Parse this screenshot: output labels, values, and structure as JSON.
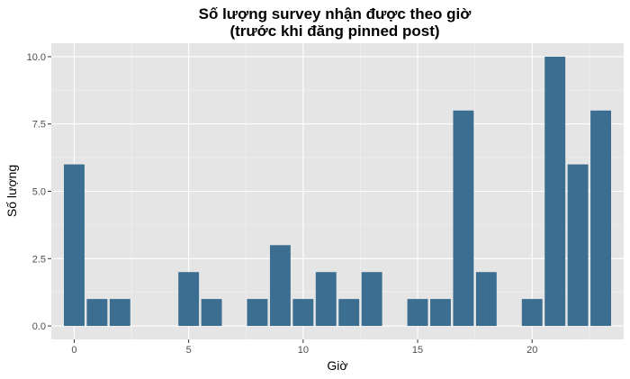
{
  "chart_data": {
    "type": "bar",
    "title": "Số lượng survey nhận được theo giờ",
    "subtitle": "(trước khi đăng pinned post)",
    "xlabel": "Giờ",
    "ylabel": "Số lượng",
    "x": [
      0,
      1,
      2,
      5,
      6,
      8,
      9,
      10,
      11,
      12,
      13,
      15,
      16,
      17,
      18,
      20,
      21,
      22,
      23
    ],
    "values": [
      6,
      1,
      1,
      2,
      1,
      1,
      3,
      1,
      2,
      1,
      2,
      1,
      1,
      8,
      2,
      1,
      10,
      6,
      8
    ],
    "xlim": [
      -1,
      24
    ],
    "ylim": [
      -0.5,
      10.5
    ],
    "x_ticks": [
      0,
      5,
      10,
      15,
      20
    ],
    "x_tick_labels": [
      "0",
      "5",
      "10",
      "15",
      "20"
    ],
    "y_ticks": [
      0,
      2.5,
      5,
      7.5,
      10
    ],
    "y_tick_labels": [
      "0.0",
      "2.5",
      "5.0",
      "7.5",
      "10.0"
    ],
    "grid": true,
    "colors": {
      "bar": "#3b6e91",
      "panel": "#e5e5e5",
      "grid_major": "#ffffff",
      "grid_minor": "#f2f2f2"
    }
  }
}
